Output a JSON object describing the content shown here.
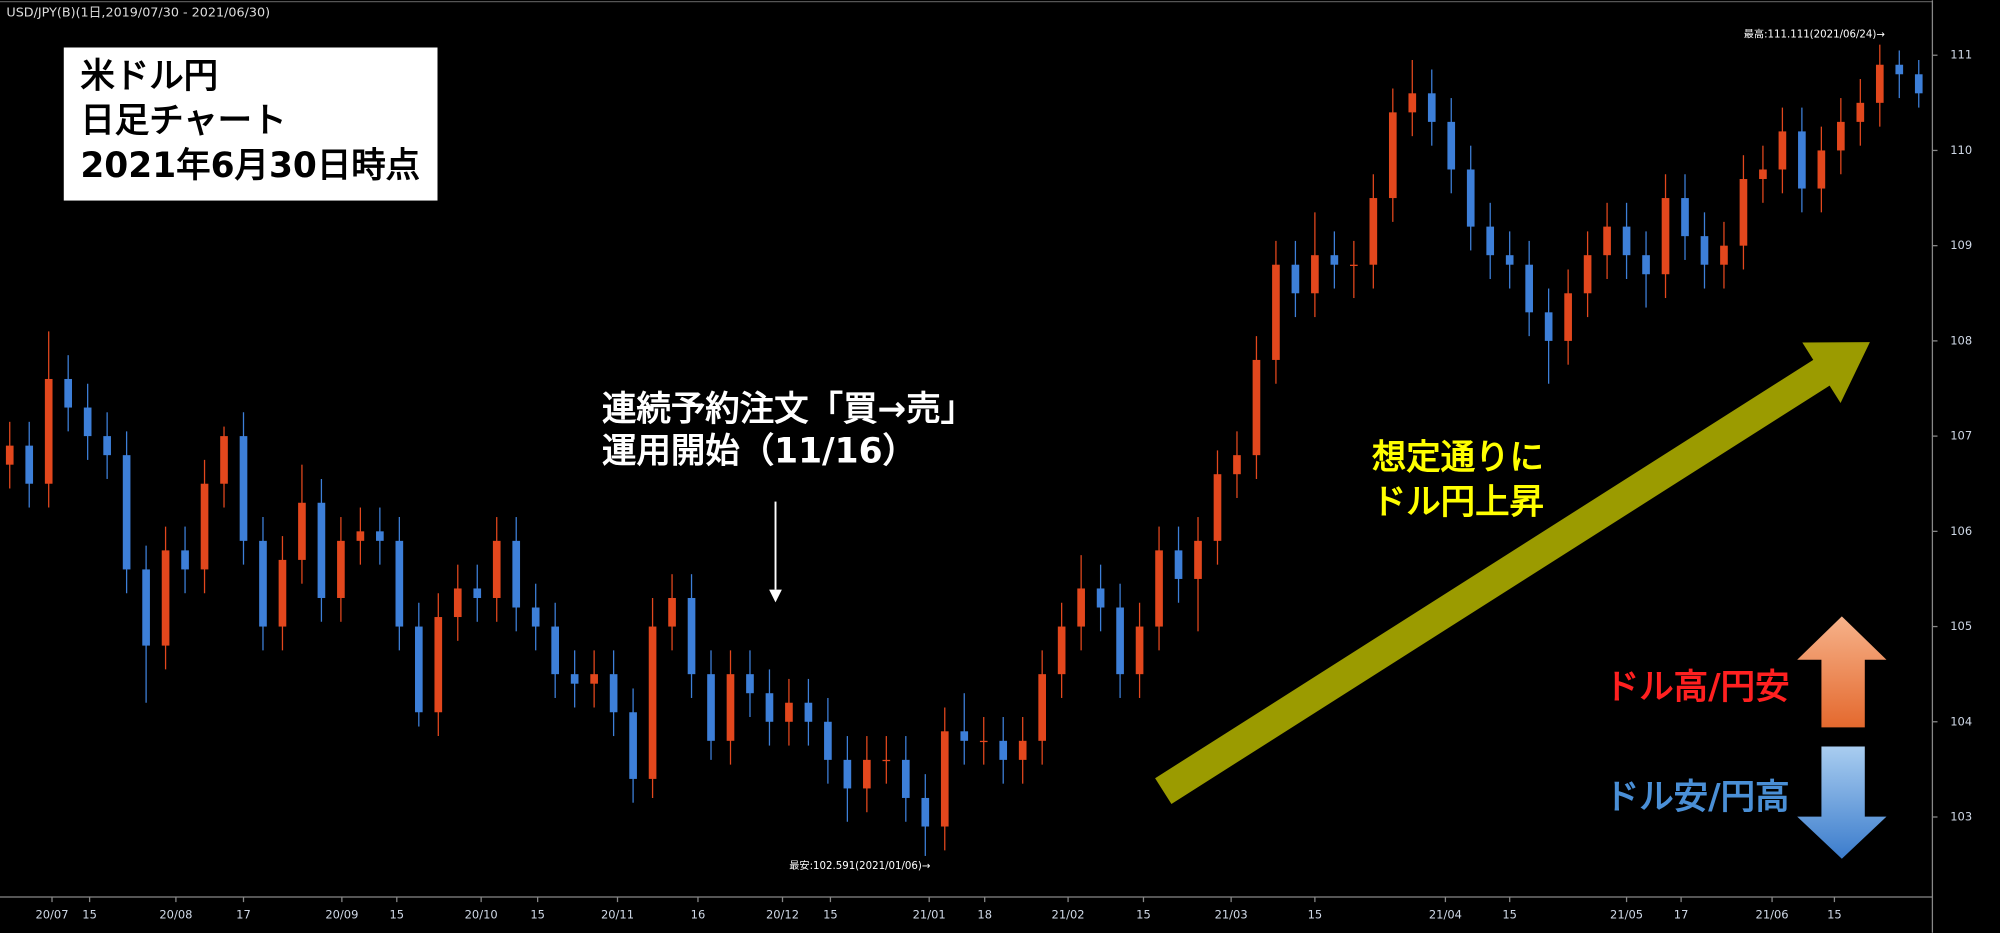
{
  "chart_data": {
    "type": "candlestick",
    "header": "USD/JPY(B)(1日,2019/07/30 - 2021/06/30)",
    "title_lines": [
      "米ドル円",
      "日足チャート",
      "2021年6月30日時点"
    ],
    "high_label": "最高:111.111(2021/06/24)→",
    "low_label": "最安:102.591(2021/01/06)→",
    "order_note": [
      "連続予約注文「買→売」",
      "運用開始（11/16）"
    ],
    "rise_note": [
      "想定通りに",
      "ドル円上昇"
    ],
    "dollar_up": "ドル高/円安",
    "dollar_down": "ドル安/円高",
    "up_color": "#e2471d",
    "down_color": "#3d7fd8",
    "open": [
      106.7,
      106.9,
      106.5,
      107.6,
      107.3,
      107.0,
      106.8,
      105.6,
      104.8,
      105.8,
      105.6,
      106.5,
      107.0,
      105.9,
      105.0,
      105.7,
      106.3,
      105.3,
      105.9,
      106.0,
      105.9,
      105.0,
      104.1,
      105.1,
      105.4,
      105.3,
      105.9,
      105.2,
      105.0,
      104.5,
      104.4,
      104.5,
      104.1,
      103.4,
      105.0,
      105.3,
      104.5,
      103.8,
      104.5,
      104.3,
      104.0,
      104.2,
      104.0,
      103.6,
      103.3,
      103.6,
      103.6,
      103.2,
      102.9,
      103.9,
      103.8,
      103.8,
      103.6,
      103.8,
      104.5,
      105.0,
      105.4,
      105.2,
      104.5,
      105.0,
      105.8,
      105.5,
      105.9,
      106.6,
      106.8,
      107.8,
      108.8,
      108.5,
      108.9,
      108.8,
      108.8,
      109.5,
      110.4,
      110.6,
      110.3,
      109.8,
      109.2,
      108.9,
      108.8,
      108.3,
      108.0,
      108.5,
      108.9,
      109.2,
      108.9,
      108.7,
      109.5,
      109.1,
      108.8,
      109.0,
      109.7,
      109.8,
      110.2,
      109.6,
      110.0,
      110.3,
      110.5,
      110.9,
      110.8
    ],
    "high": [
      107.15,
      107.15,
      108.1,
      107.85,
      107.55,
      107.25,
      107.05,
      105.85,
      106.05,
      106.05,
      106.75,
      107.1,
      107.25,
      106.15,
      105.95,
      106.7,
      106.55,
      106.15,
      106.25,
      106.25,
      106.15,
      105.25,
      105.35,
      105.65,
      105.65,
      106.15,
      106.15,
      105.45,
      105.25,
      104.75,
      104.75,
      104.75,
      104.35,
      105.3,
      105.55,
      105.55,
      104.75,
      104.75,
      104.75,
      104.55,
      104.45,
      104.45,
      104.25,
      103.85,
      103.85,
      103.85,
      103.85,
      103.45,
      104.15,
      104.3,
      104.05,
      104.05,
      104.05,
      104.75,
      105.25,
      105.75,
      105.65,
      105.45,
      105.25,
      106.05,
      106.05,
      106.15,
      106.85,
      107.05,
      108.05,
      109.05,
      109.05,
      109.35,
      109.15,
      109.05,
      109.75,
      110.65,
      110.95,
      110.85,
      110.55,
      110.05,
      109.45,
      109.15,
      109.05,
      108.55,
      108.75,
      109.15,
      109.45,
      109.45,
      109.15,
      109.75,
      109.75,
      109.35,
      109.25,
      109.95,
      110.05,
      110.45,
      110.45,
      110.25,
      110.55,
      110.75,
      111.111,
      111.05,
      110.95
    ],
    "low": [
      106.45,
      106.25,
      106.25,
      107.05,
      106.75,
      106.55,
      105.35,
      104.2,
      104.55,
      105.35,
      105.35,
      106.25,
      105.65,
      104.75,
      104.75,
      105.45,
      105.05,
      105.05,
      105.65,
      105.65,
      104.75,
      103.95,
      103.85,
      104.85,
      105.05,
      105.05,
      104.95,
      104.75,
      104.25,
      104.15,
      104.15,
      103.85,
      103.15,
      103.2,
      104.75,
      104.25,
      103.6,
      103.55,
      104.05,
      103.75,
      103.75,
      103.75,
      103.35,
      102.95,
      103.05,
      103.35,
      102.95,
      102.591,
      102.65,
      103.55,
      103.55,
      103.35,
      103.35,
      103.55,
      104.25,
      104.75,
      104.95,
      104.25,
      104.25,
      104.75,
      105.25,
      104.95,
      105.65,
      106.35,
      106.55,
      107.55,
      108.25,
      108.25,
      108.55,
      108.45,
      108.55,
      109.25,
      110.15,
      110.05,
      109.55,
      108.95,
      108.65,
      108.55,
      108.05,
      107.55,
      107.75,
      108.25,
      108.65,
      108.65,
      108.35,
      108.45,
      108.85,
      108.55,
      108.55,
      108.75,
      109.45,
      109.55,
      109.35,
      109.35,
      109.75,
      110.05,
      110.25,
      110.55,
      110.45
    ],
    "close": [
      106.9,
      106.5,
      107.6,
      107.3,
      107.0,
      106.8,
      105.6,
      104.8,
      105.8,
      105.6,
      106.5,
      107.0,
      105.9,
      105.0,
      105.7,
      106.3,
      105.3,
      105.9,
      106.0,
      105.9,
      105.0,
      104.1,
      105.1,
      105.4,
      105.3,
      105.9,
      105.2,
      105.0,
      104.5,
      104.4,
      104.5,
      104.1,
      103.4,
      105.0,
      105.3,
      104.5,
      103.8,
      104.5,
      104.3,
      104.0,
      104.2,
      104.0,
      103.6,
      103.3,
      103.6,
      103.6,
      103.2,
      102.9,
      103.9,
      103.8,
      103.8,
      103.6,
      103.8,
      104.5,
      105.0,
      105.4,
      105.2,
      104.5,
      105.0,
      105.8,
      105.5,
      105.9,
      106.6,
      106.8,
      107.8,
      108.8,
      108.5,
      108.9,
      108.8,
      108.8,
      109.5,
      110.4,
      110.6,
      110.3,
      109.8,
      109.2,
      108.9,
      108.8,
      108.3,
      108.0,
      108.5,
      108.9,
      109.2,
      108.9,
      108.7,
      109.5,
      109.1,
      108.8,
      109.0,
      109.7,
      109.8,
      110.2,
      109.6,
      110.0,
      110.3,
      110.5,
      110.9,
      110.8,
      110.6
    ],
    "xlim": [
      -0.5,
      98.7
    ],
    "xticks": [
      {
        "value": 2.17,
        "label": "20/07"
      },
      {
        "value": 4.1,
        "label": "15"
      },
      {
        "value": 8.53,
        "label": "20/08"
      },
      {
        "value": 12,
        "label": "17"
      },
      {
        "value": 17.05,
        "label": "20/09"
      },
      {
        "value": 19.87,
        "label": "15"
      },
      {
        "value": 24.2,
        "label": "20/10"
      },
      {
        "value": 27.1,
        "label": "15"
      },
      {
        "value": 31.2,
        "label": "20/11"
      },
      {
        "value": 35.33,
        "label": "16"
      },
      {
        "value": 39.67,
        "label": "20/12"
      },
      {
        "value": 42.13,
        "label": "15"
      },
      {
        "value": 47.2,
        "label": "21/01"
      },
      {
        "value": 50.05,
        "label": "18"
      },
      {
        "value": 54.33,
        "label": "21/02"
      },
      {
        "value": 58.2,
        "label": "15"
      },
      {
        "value": 62.7,
        "label": "21/03"
      },
      {
        "value": 67,
        "label": "15"
      },
      {
        "value": 73.7,
        "label": "21/04"
      },
      {
        "value": 77,
        "label": "15"
      },
      {
        "value": 83,
        "label": "21/05"
      },
      {
        "value": 85.8,
        "label": "17"
      },
      {
        "value": 90.47,
        "label": "21/06"
      },
      {
        "value": 93.67,
        "label": "15"
      }
    ],
    "ylim": [
      102.16,
      111.55
    ],
    "yticks": [
      103,
      104,
      105,
      106,
      107,
      108,
      109,
      110,
      111
    ]
  }
}
